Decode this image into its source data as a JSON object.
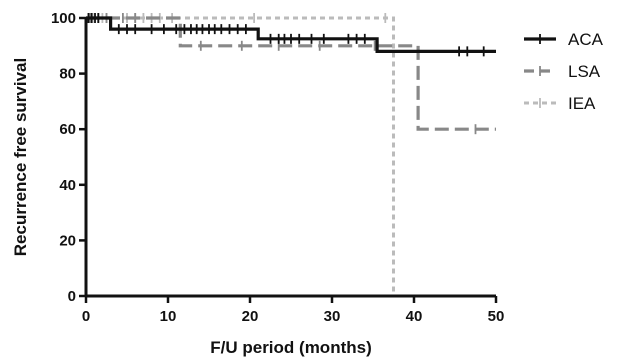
{
  "chart_data": {
    "type": "line",
    "title": "",
    "xlabel": "F/U period (months)",
    "ylabel": "Recurrence free survival",
    "xlim": [
      0,
      50
    ],
    "ylim": [
      0,
      100
    ],
    "xticks": [
      0,
      10,
      20,
      30,
      40,
      50
    ],
    "yticks": [
      0,
      20,
      40,
      60,
      80,
      100
    ],
    "grid": false,
    "legend_position": "top-right",
    "series": [
      {
        "name": "ACA",
        "color": "#111111",
        "dash": "solid",
        "step_points": [
          [
            0,
            100
          ],
          [
            3,
            100
          ],
          [
            3,
            96
          ],
          [
            21,
            96
          ],
          [
            21,
            92.5
          ],
          [
            35.5,
            92.5
          ],
          [
            35.5,
            88
          ],
          [
            50,
            88
          ]
        ],
        "censored": [
          [
            0.3,
            100
          ],
          [
            0.7,
            100
          ],
          [
            1.1,
            100
          ],
          [
            1.5,
            100
          ],
          [
            4,
            96
          ],
          [
            5,
            96
          ],
          [
            6,
            96
          ],
          [
            8,
            96
          ],
          [
            9.5,
            96
          ],
          [
            11,
            96
          ],
          [
            12,
            96
          ],
          [
            12.8,
            96
          ],
          [
            13.5,
            96
          ],
          [
            14.2,
            96
          ],
          [
            15,
            96
          ],
          [
            15.7,
            96
          ],
          [
            16.5,
            96
          ],
          [
            17.5,
            96
          ],
          [
            18.5,
            96
          ],
          [
            19.5,
            96
          ],
          [
            22.5,
            92.5
          ],
          [
            23.5,
            92.5
          ],
          [
            24.2,
            92.5
          ],
          [
            25,
            92.5
          ],
          [
            26,
            92.5
          ],
          [
            27.5,
            92.5
          ],
          [
            29,
            92.5
          ],
          [
            32,
            92.5
          ],
          [
            33,
            92.5
          ],
          [
            34,
            92.5
          ],
          [
            45.5,
            88
          ],
          [
            46.5,
            88
          ],
          [
            48.5,
            88
          ]
        ]
      },
      {
        "name": "LSA",
        "color": "#888888",
        "dash": "dashed",
        "step_points": [
          [
            0,
            100
          ],
          [
            11.5,
            100
          ],
          [
            11.5,
            90
          ],
          [
            40.5,
            90
          ],
          [
            40.5,
            60
          ],
          [
            50,
            60
          ]
        ],
        "censored": [
          [
            0.5,
            100
          ],
          [
            1.5,
            100
          ],
          [
            2.5,
            100
          ],
          [
            4.5,
            100
          ],
          [
            6,
            100
          ],
          [
            14,
            90
          ],
          [
            19,
            90
          ],
          [
            23.5,
            90
          ],
          [
            28.5,
            90
          ],
          [
            35.2,
            90
          ],
          [
            47.5,
            60
          ]
        ]
      },
      {
        "name": "IEA",
        "color": "#bbbbbb",
        "dash": "dotted",
        "step_points": [
          [
            0,
            100
          ],
          [
            37.5,
            100
          ],
          [
            37.5,
            0
          ]
        ],
        "censored": [
          [
            0.5,
            100
          ],
          [
            1,
            100
          ],
          [
            1.5,
            100
          ],
          [
            2,
            100
          ],
          [
            2.5,
            100
          ],
          [
            5,
            100
          ],
          [
            6,
            100
          ],
          [
            7,
            100
          ],
          [
            8,
            100
          ],
          [
            9,
            100
          ],
          [
            10.5,
            100
          ],
          [
            20.5,
            100
          ],
          [
            36.5,
            100
          ]
        ]
      }
    ]
  }
}
